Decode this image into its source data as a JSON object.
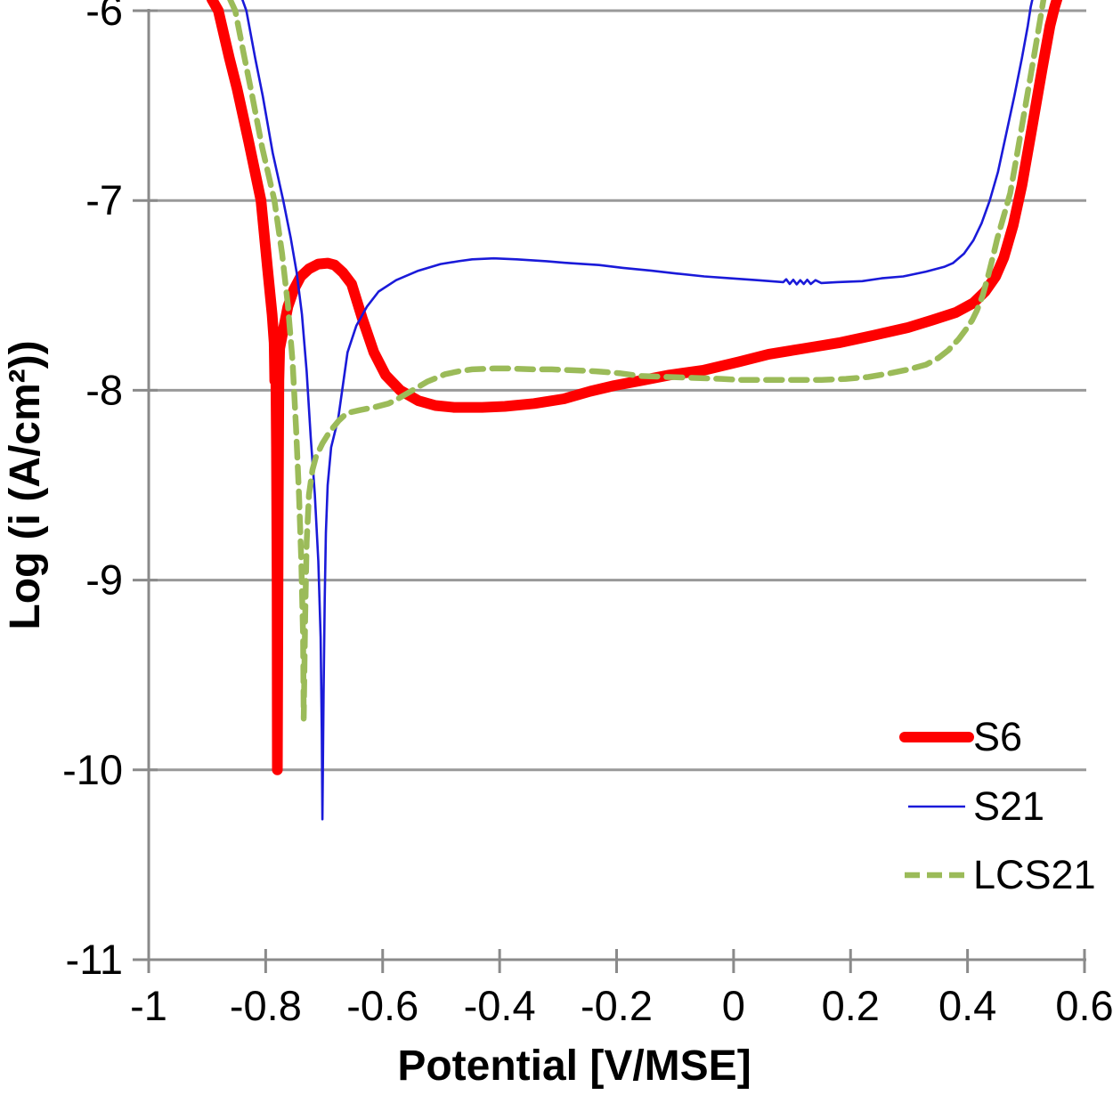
{
  "chart_data": {
    "type": "line",
    "title": "",
    "xlabel": "Potential [V/MSE]",
    "ylabel": "Log (i (A/cm²))",
    "xlim": [
      -1,
      0.6
    ],
    "ylim": [
      -11,
      -6
    ],
    "x_tick_values": [
      -1,
      -0.8,
      -0.6,
      -0.4,
      -0.2,
      0,
      0.2,
      0.4,
      0.6
    ],
    "x_tick_labels": [
      "-1",
      "-0.8",
      "-0.6",
      "-0.4",
      "-0.2",
      "0",
      "0.2",
      "0.4",
      "0.6"
    ],
    "y_tick_values": [
      -6,
      -7,
      -8,
      -9,
      -10,
      -11
    ],
    "y_tick_labels": [
      "-6",
      "-7",
      "-8",
      "-9",
      "-10",
      "-11"
    ],
    "grid": "horizontal-only",
    "legend_position": "inside-lower-right",
    "colors": {
      "background": "#ffffff",
      "grid": "#999999",
      "axis": "#8a8a8a",
      "text": "#000000"
    },
    "series": [
      {
        "name": "S6",
        "color": "#fe0000",
        "line_style": "solid",
        "line_width": 12,
        "description": "thick red solid curve, corrosion potential spike near -0.78 V down to log i = -10, anodic peak at -0.69 V (log i = -7.33), passive minimum log i = -8.09 near -0.45 V, transpassive rise beyond +0.45 V",
        "points": [
          [
            -0.892,
            -5.94
          ],
          [
            -0.881,
            -6.0
          ],
          [
            -0.862,
            -6.25
          ],
          [
            -0.849,
            -6.41
          ],
          [
            -0.829,
            -6.69
          ],
          [
            -0.808,
            -7.0
          ],
          [
            -0.797,
            -7.35
          ],
          [
            -0.789,
            -7.6
          ],
          [
            -0.7855,
            -7.75
          ],
          [
            -0.7845,
            -7.95
          ],
          [
            -0.783,
            -7.72
          ],
          [
            -0.7815,
            -8.3
          ],
          [
            -0.7805,
            -9.0
          ],
          [
            -0.78,
            -10.0
          ],
          [
            -0.7785,
            -8.6
          ],
          [
            -0.7775,
            -7.95
          ],
          [
            -0.776,
            -7.78
          ],
          [
            -0.771,
            -7.7
          ],
          [
            -0.762,
            -7.56
          ],
          [
            -0.752,
            -7.47
          ],
          [
            -0.74,
            -7.4
          ],
          [
            -0.726,
            -7.36
          ],
          [
            -0.71,
            -7.335
          ],
          [
            -0.694,
            -7.33
          ],
          [
            -0.682,
            -7.34
          ],
          [
            -0.668,
            -7.38
          ],
          [
            -0.653,
            -7.44
          ],
          [
            -0.635,
            -7.62
          ],
          [
            -0.615,
            -7.8
          ],
          [
            -0.595,
            -7.92
          ],
          [
            -0.57,
            -8.0
          ],
          [
            -0.539,
            -8.055
          ],
          [
            -0.51,
            -8.08
          ],
          [
            -0.478,
            -8.09
          ],
          [
            -0.43,
            -8.09
          ],
          [
            -0.391,
            -8.085
          ],
          [
            -0.341,
            -8.07
          ],
          [
            -0.29,
            -8.045
          ],
          [
            -0.245,
            -8.005
          ],
          [
            -0.204,
            -7.975
          ],
          [
            -0.16,
            -7.95
          ],
          [
            -0.11,
            -7.92
          ],
          [
            -0.052,
            -7.895
          ],
          [
            0.009,
            -7.85
          ],
          [
            0.06,
            -7.81
          ],
          [
            0.12,
            -7.78
          ],
          [
            0.18,
            -7.75
          ],
          [
            0.24,
            -7.71
          ],
          [
            0.298,
            -7.67
          ],
          [
            0.34,
            -7.63
          ],
          [
            0.38,
            -7.59
          ],
          [
            0.41,
            -7.54
          ],
          [
            0.43,
            -7.48
          ],
          [
            0.448,
            -7.4
          ],
          [
            0.462,
            -7.3
          ],
          [
            0.478,
            -7.13
          ],
          [
            0.493,
            -6.92
          ],
          [
            0.51,
            -6.62
          ],
          [
            0.528,
            -6.3
          ],
          [
            0.541,
            -6.08
          ],
          [
            0.549,
            -5.98
          ],
          [
            0.553,
            -5.94
          ]
        ]
      },
      {
        "name": "S21",
        "color": "#1a1ad9",
        "line_style": "solid",
        "line_width": 2.6,
        "description": "thin blue solid curve, corrosion potential spike at -0.70 V down to log i = -10.26, plateau log i = -7.31 near -0.42 V, slight decline to -7.43 around 0.1 V, steep rise beyond +0.4 V",
        "points": [
          [
            -0.84,
            -5.94
          ],
          [
            -0.833,
            -6.0
          ],
          [
            -0.818,
            -6.25
          ],
          [
            -0.805,
            -6.45
          ],
          [
            -0.788,
            -6.75
          ],
          [
            -0.77,
            -7.0
          ],
          [
            -0.757,
            -7.2
          ],
          [
            -0.747,
            -7.38
          ],
          [
            -0.738,
            -7.6
          ],
          [
            -0.73,
            -7.9
          ],
          [
            -0.723,
            -8.25
          ],
          [
            -0.716,
            -8.55
          ],
          [
            -0.71,
            -8.9
          ],
          [
            -0.706,
            -9.3
          ],
          [
            -0.704,
            -9.8
          ],
          [
            -0.703,
            -10.26
          ],
          [
            -0.701,
            -9.6
          ],
          [
            -0.699,
            -9.1
          ],
          [
            -0.697,
            -8.75
          ],
          [
            -0.694,
            -8.5
          ],
          [
            -0.688,
            -8.3
          ],
          [
            -0.676,
            -8.15
          ],
          [
            -0.66,
            -7.8
          ],
          [
            -0.645,
            -7.66
          ],
          [
            -0.627,
            -7.56
          ],
          [
            -0.607,
            -7.48
          ],
          [
            -0.577,
            -7.42
          ],
          [
            -0.539,
            -7.37
          ],
          [
            -0.501,
            -7.335
          ],
          [
            -0.47,
            -7.32
          ],
          [
            -0.447,
            -7.31
          ],
          [
            -0.41,
            -7.305
          ],
          [
            -0.371,
            -7.31
          ],
          [
            -0.32,
            -7.32
          ],
          [
            -0.28,
            -7.33
          ],
          [
            -0.23,
            -7.34
          ],
          [
            -0.189,
            -7.355
          ],
          [
            -0.14,
            -7.37
          ],
          [
            -0.097,
            -7.385
          ],
          [
            -0.05,
            -7.4
          ],
          [
            -0.006,
            -7.41
          ],
          [
            0.04,
            -7.42
          ],
          [
            0.085,
            -7.43
          ],
          [
            0.09,
            -7.415
          ],
          [
            0.096,
            -7.44
          ],
          [
            0.102,
            -7.418
          ],
          [
            0.108,
            -7.442
          ],
          [
            0.114,
            -7.42
          ],
          [
            0.12,
            -7.44
          ],
          [
            0.126,
            -7.418
          ],
          [
            0.132,
            -7.44
          ],
          [
            0.14,
            -7.42
          ],
          [
            0.15,
            -7.435
          ],
          [
            0.177,
            -7.43
          ],
          [
            0.22,
            -7.425
          ],
          [
            0.253,
            -7.41
          ],
          [
            0.29,
            -7.4
          ],
          [
            0.329,
            -7.375
          ],
          [
            0.36,
            -7.35
          ],
          [
            0.375,
            -7.33
          ],
          [
            0.394,
            -7.28
          ],
          [
            0.41,
            -7.21
          ],
          [
            0.424,
            -7.12
          ],
          [
            0.438,
            -7.0
          ],
          [
            0.452,
            -6.85
          ],
          [
            0.466,
            -6.65
          ],
          [
            0.48,
            -6.45
          ],
          [
            0.493,
            -6.25
          ],
          [
            0.503,
            -6.08
          ],
          [
            0.508,
            -5.98
          ],
          [
            0.511,
            -5.94
          ]
        ]
      },
      {
        "name": "LCS21",
        "color": "#9bbb59",
        "line_style": "dashed",
        "line_width": 6.5,
        "description": "olive-green dashed curve, corrosion potential spike at -0.735 V down to log i = -9.73, plateau log i = -7.89 near -0.4 V, flat near -7.94 around 0-0.2 V, steep rise beyond +0.42 V",
        "points": [
          [
            -0.861,
            -5.94
          ],
          [
            -0.852,
            -6.0
          ],
          [
            -0.838,
            -6.22
          ],
          [
            -0.823,
            -6.45
          ],
          [
            -0.806,
            -6.72
          ],
          [
            -0.785,
            -7.0
          ],
          [
            -0.772,
            -7.28
          ],
          [
            -0.762,
            -7.55
          ],
          [
            -0.754,
            -7.85
          ],
          [
            -0.748,
            -8.2
          ],
          [
            -0.743,
            -8.55
          ],
          [
            -0.739,
            -8.9
          ],
          [
            -0.736,
            -9.3
          ],
          [
            -0.735,
            -9.73
          ],
          [
            -0.7325,
            -9.2
          ],
          [
            -0.73,
            -8.8
          ],
          [
            -0.726,
            -8.55
          ],
          [
            -0.72,
            -8.42
          ],
          [
            -0.714,
            -8.35
          ],
          [
            -0.703,
            -8.28
          ],
          [
            -0.691,
            -8.22
          ],
          [
            -0.675,
            -8.16
          ],
          [
            -0.661,
            -8.12
          ],
          [
            -0.64,
            -8.105
          ],
          [
            -0.615,
            -8.09
          ],
          [
            -0.59,
            -8.07
          ],
          [
            -0.577,
            -8.05
          ],
          [
            -0.549,
            -8.0
          ],
          [
            -0.524,
            -7.955
          ],
          [
            -0.493,
            -7.915
          ],
          [
            -0.47,
            -7.9
          ],
          [
            -0.447,
            -7.89
          ],
          [
            -0.41,
            -7.885
          ],
          [
            -0.387,
            -7.885
          ],
          [
            -0.34,
            -7.89
          ],
          [
            -0.311,
            -7.89
          ],
          [
            -0.27,
            -7.895
          ],
          [
            -0.235,
            -7.9
          ],
          [
            -0.195,
            -7.91
          ],
          [
            -0.159,
            -7.925
          ],
          [
            -0.11,
            -7.93
          ],
          [
            -0.068,
            -7.935
          ],
          [
            -0.02,
            -7.94
          ],
          [
            0.009,
            -7.945
          ],
          [
            0.055,
            -7.945
          ],
          [
            0.1,
            -7.945
          ],
          [
            0.15,
            -7.945
          ],
          [
            0.192,
            -7.94
          ],
          [
            0.23,
            -7.93
          ],
          [
            0.268,
            -7.91
          ],
          [
            0.3,
            -7.89
          ],
          [
            0.329,
            -7.865
          ],
          [
            0.35,
            -7.83
          ],
          [
            0.367,
            -7.79
          ],
          [
            0.385,
            -7.73
          ],
          [
            0.397,
            -7.68
          ],
          [
            0.408,
            -7.63
          ],
          [
            0.416,
            -7.58
          ],
          [
            0.426,
            -7.5
          ],
          [
            0.435,
            -7.4
          ],
          [
            0.444,
            -7.29
          ],
          [
            0.451,
            -7.2
          ],
          [
            0.462,
            -7.08
          ],
          [
            0.473,
            -6.96
          ],
          [
            0.485,
            -6.75
          ],
          [
            0.499,
            -6.5
          ],
          [
            0.513,
            -6.25
          ],
          [
            0.524,
            -6.05
          ],
          [
            0.53,
            -5.94
          ]
        ]
      }
    ]
  }
}
